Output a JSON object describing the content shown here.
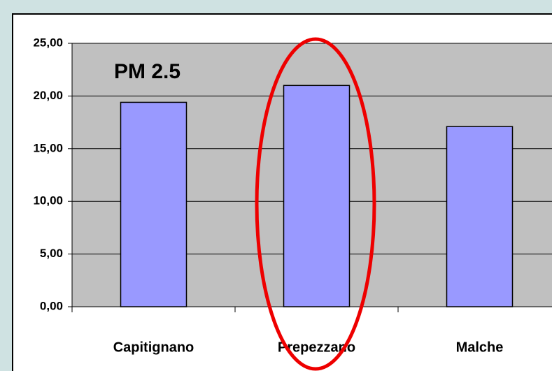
{
  "chart_data": {
    "type": "bar",
    "title": "PM 2.5",
    "categories": [
      "Capitignano",
      "Prepezzano",
      "Malche"
    ],
    "values": [
      19.4,
      21.0,
      17.1
    ],
    "color": "#9999ff",
    "ylim": [
      0,
      25
    ],
    "yticks": [
      {
        "value": 0,
        "label": "0,00"
      },
      {
        "value": 5,
        "label": "5,00"
      },
      {
        "value": 10,
        "label": "10,00"
      },
      {
        "value": 15,
        "label": "15,00"
      },
      {
        "value": 20,
        "label": "20,00"
      },
      {
        "value": 25,
        "label": "25,00"
      }
    ],
    "grid": true
  }
}
